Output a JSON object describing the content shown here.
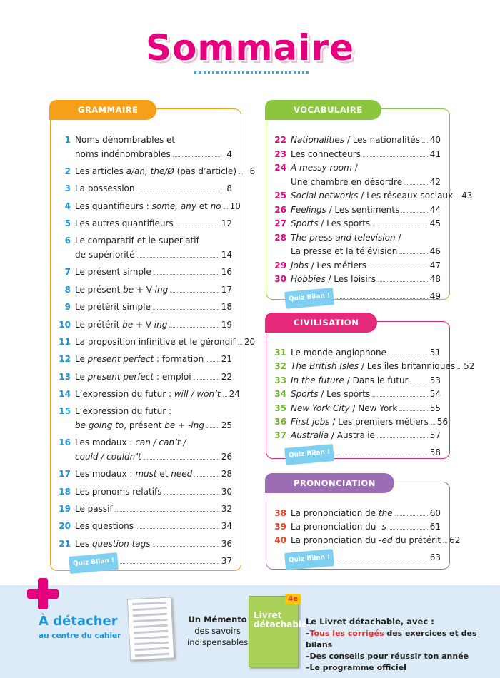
{
  "title": "Sommaire",
  "sections": [
    {
      "heading": "GRAMMAIRE",
      "color": "#f6a01a",
      "num_color": "#1a96d4",
      "entries": [
        {
          "num": 1,
          "lines": [
            [
              "Noms dénombrables et"
            ],
            [
              "noms indénombrables"
            ]
          ],
          "page": 4
        },
        {
          "num": 2,
          "lines": [
            [
              "Les articles ",
              {
                "text": "a/an, the/Ø",
                "italic": true
              },
              " (pas d’article)"
            ]
          ],
          "page": 6
        },
        {
          "num": 3,
          "lines": [
            [
              "La possession"
            ]
          ],
          "page": 8
        },
        {
          "num": 4,
          "lines": [
            [
              "Les quantifieurs : ",
              {
                "text": "some, any",
                "italic": true
              },
              " et ",
              {
                "text": "no",
                "italic": true
              }
            ]
          ],
          "page": 10
        },
        {
          "num": 5,
          "lines": [
            [
              "Les autres quantifieurs"
            ]
          ],
          "page": 12
        },
        {
          "num": 6,
          "lines": [
            [
              "Le comparatif et le superlatif"
            ],
            [
              "de supériorité"
            ]
          ],
          "page": 14
        },
        {
          "num": 7,
          "lines": [
            [
              "Le présent simple"
            ]
          ],
          "page": 16
        },
        {
          "num": 8,
          "lines": [
            [
              "Le présent ",
              {
                "text": "be",
                "italic": true
              },
              " + V-",
              {
                "text": "ing",
                "italic": true
              }
            ]
          ],
          "page": 17
        },
        {
          "num": 9,
          "lines": [
            [
              "Le prétérit simple"
            ]
          ],
          "page": 18
        },
        {
          "num": 10,
          "lines": [
            [
              "Le prétérit ",
              {
                "text": "be",
                "italic": true
              },
              " + V-",
              {
                "text": "ing",
                "italic": true
              }
            ]
          ],
          "page": 19
        },
        {
          "num": 11,
          "lines": [
            [
              "La proposition infinitive et le gérondif"
            ]
          ],
          "page": 20
        },
        {
          "num": 12,
          "lines": [
            [
              "Le ",
              {
                "text": "present perfect",
                "italic": true
              },
              " : formation"
            ]
          ],
          "page": 21
        },
        {
          "num": 13,
          "lines": [
            [
              "Le ",
              {
                "text": "present perfect",
                "italic": true
              },
              " : emploi"
            ]
          ],
          "page": 22
        },
        {
          "num": 14,
          "lines": [
            [
              "L’expression du futur : ",
              {
                "text": "will / won’t",
                "italic": true
              }
            ]
          ],
          "page": 24
        },
        {
          "num": 15,
          "lines": [
            [
              "L’expression du futur :"
            ],
            [
              {
                "text": "be going to",
                "italic": true
              },
              ", présent ",
              {
                "text": "be",
                "italic": true
              },
              " + -",
              {
                "text": "ing",
                "italic": true
              }
            ]
          ],
          "page": 25
        },
        {
          "num": 16,
          "lines": [
            [
              "Les modaux : ",
              {
                "text": "can / can’t /",
                "italic": true
              }
            ],
            [
              {
                "text": "could / couldn’t",
                "italic": true
              }
            ]
          ],
          "page": 26
        },
        {
          "num": 17,
          "lines": [
            [
              "Les modaux : ",
              {
                "text": "must",
                "italic": true
              },
              " et ",
              {
                "text": "need",
                "italic": true
              }
            ]
          ],
          "page": 28
        },
        {
          "num": 18,
          "lines": [
            [
              "Les pronoms relatifs"
            ]
          ],
          "page": 30
        },
        {
          "num": 19,
          "lines": [
            [
              "Le passif"
            ]
          ],
          "page": 32
        },
        {
          "num": 20,
          "lines": [
            [
              "Les questions"
            ]
          ],
          "page": 34
        },
        {
          "num": 21,
          "lines": [
            [
              "Les ",
              {
                "text": "question tags",
                "italic": true
              }
            ]
          ],
          "page": 36
        }
      ],
      "quiz": {
        "label": "Quiz Bilan !",
        "page": 37
      }
    },
    {
      "heading": "VOCABULAIRE",
      "color": "#8cc63e",
      "num_color": "#e5007d",
      "entries": [
        {
          "num": 22,
          "lines": [
            [
              {
                "text": "Nationalities",
                "italic": true
              },
              " / Les nationalités"
            ]
          ],
          "page": 40
        },
        {
          "num": 23,
          "lines": [
            [
              "Les connecteurs"
            ]
          ],
          "page": 41
        },
        {
          "num": 24,
          "lines": [
            [
              {
                "text": "A messy room",
                "italic": true
              },
              " /"
            ],
            [
              "Une chambre en désordre"
            ]
          ],
          "page": 42
        },
        {
          "num": 25,
          "lines": [
            [
              {
                "text": "Social networks",
                "italic": true
              },
              " / Les réseaux sociaux"
            ]
          ],
          "page": 43
        },
        {
          "num": 26,
          "lines": [
            [
              {
                "text": "Feelings",
                "italic": true
              },
              " / Les sentiments"
            ]
          ],
          "page": 44
        },
        {
          "num": 27,
          "lines": [
            [
              {
                "text": "Sports",
                "italic": true
              },
              " / Les sports"
            ]
          ],
          "page": 45
        },
        {
          "num": 28,
          "lines": [
            [
              {
                "text": "The press and television",
                "italic": true
              },
              " /"
            ],
            [
              "La presse et la télévision"
            ]
          ],
          "page": 46
        },
        {
          "num": 29,
          "lines": [
            [
              {
                "text": "Jobs",
                "italic": true
              },
              " / Les métiers"
            ]
          ],
          "page": 47
        },
        {
          "num": 30,
          "lines": [
            [
              {
                "text": "Hobbies",
                "italic": true
              },
              " / Les loisirs"
            ]
          ],
          "page": 48
        }
      ],
      "quiz": {
        "label": "Quiz Bilan !",
        "page": 49
      }
    },
    {
      "heading": "CIVILISATION",
      "color": "#e62a7b",
      "num_color": "#6fb52c",
      "entries": [
        {
          "num": 31,
          "lines": [
            [
              "Le monde anglophone"
            ]
          ],
          "page": 51
        },
        {
          "num": 32,
          "lines": [
            [
              {
                "text": "The British Isles",
                "italic": true
              },
              " / Les îles britanniques"
            ]
          ],
          "page": 52
        },
        {
          "num": 33,
          "lines": [
            [
              {
                "text": "In the future",
                "italic": true
              },
              " / Dans le futur"
            ]
          ],
          "page": 53
        },
        {
          "num": 34,
          "lines": [
            [
              {
                "text": "Sports",
                "italic": true
              },
              " / Les sports"
            ]
          ],
          "page": 54
        },
        {
          "num": 35,
          "lines": [
            [
              {
                "text": "New York City",
                "italic": true
              },
              " / New York"
            ]
          ],
          "page": 55
        },
        {
          "num": 36,
          "lines": [
            [
              {
                "text": "First jobs",
                "italic": true
              },
              " / Les premiers métiers"
            ]
          ],
          "page": 56
        },
        {
          "num": 37,
          "lines": [
            [
              {
                "text": "Australia",
                "italic": true
              },
              " / Australie"
            ]
          ],
          "page": 57
        }
      ],
      "quiz": {
        "label": "Quiz Bilan !",
        "page": 58
      }
    },
    {
      "heading": "PRONONCIATION",
      "color": "#9c6cb4",
      "num_color": "#e6421c",
      "entries": [
        {
          "num": 38,
          "lines": [
            [
              "La prononciation de ",
              {
                "text": "the",
                "italic": true
              }
            ]
          ],
          "page": 60
        },
        {
          "num": 39,
          "lines": [
            [
              "La prononciation du ",
              {
                "text": "-s",
                "italic": true
              }
            ]
          ],
          "page": 61
        },
        {
          "num": 40,
          "lines": [
            [
              "La prononciation du ",
              {
                "text": "-ed",
                "italic": true
              },
              " du prétérit"
            ]
          ],
          "page": 62
        }
      ],
      "quiz": {
        "label": "Quiz Bilan !",
        "page": 63
      }
    }
  ],
  "footer": {
    "detach": "À détacher",
    "detach_sub": "au centre du cahier",
    "memento": [
      "Un Mémento",
      "des savoirs",
      "indispensables"
    ],
    "cover": [
      "Livret",
      "détachable"
    ],
    "grade": "4e",
    "livret_title": "Le Livret détachable, avec :",
    "bullets": [
      [
        "–",
        {
          "text": "Tous les corrigés",
          "color": "#e5302a"
        },
        " des exercices et des bilans"
      ],
      [
        "–",
        "Des conseils pour réussir ton année"
      ],
      [
        "–",
        "Le programme officiel"
      ]
    ]
  }
}
